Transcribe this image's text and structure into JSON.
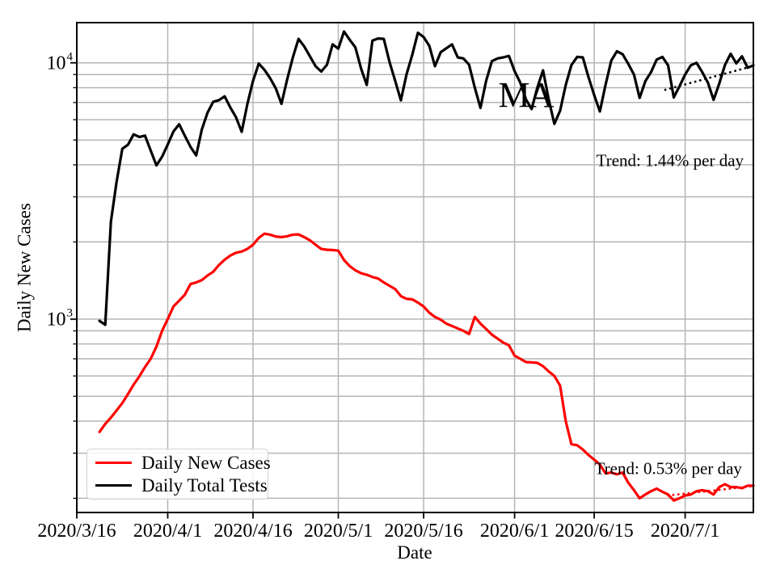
{
  "chart_data": {
    "type": "line",
    "title": "",
    "xlabel": "Date",
    "ylabel": "Daily New Cases",
    "y_scale": "log",
    "ylim": [
      176,
      14350
    ],
    "x_total_days": 119,
    "x_start_label": "2020/3/16",
    "grid": "on",
    "grid_color": "#b5b5b5",
    "x_ticks": [
      {
        "label": "2020/3/16",
        "day": 0
      },
      {
        "label": "2020/4/1",
        "day": 16
      },
      {
        "label": "2020/4/16",
        "day": 31
      },
      {
        "label": "2020/5/1",
        "day": 46
      },
      {
        "label": "2020/5/16",
        "day": 61
      },
      {
        "label": "2020/6/1",
        "day": 77
      },
      {
        "label": "2020/6/15",
        "day": 91
      },
      {
        "label": "2020/7/1",
        "day": 107
      }
    ],
    "y_ticks": [
      {
        "base": "10",
        "exp": "3",
        "value": 1000
      },
      {
        "base": "10",
        "exp": "4",
        "value": 10000
      }
    ],
    "y_gridlines_major": [
      1000,
      10000
    ],
    "y_gridlines_minor": [
      200,
      300,
      400,
      500,
      600,
      700,
      800,
      900,
      2000,
      3000,
      4000,
      5000,
      6000,
      7000,
      8000,
      9000
    ],
    "series": [
      {
        "name": "Daily New Cases",
        "color": "#ff0000",
        "start_day": 4,
        "values": [
          363,
          390,
          413,
          440,
          470,
          510,
          555,
          598,
          650,
          700,
          781,
          900,
          1000,
          1121,
          1180,
          1245,
          1370,
          1390,
          1420,
          1480,
          1530,
          1625,
          1705,
          1770,
          1815,
          1835,
          1880,
          1950,
          2075,
          2155,
          2135,
          2100,
          2090,
          2105,
          2135,
          2140,
          2090,
          2030,
          1950,
          1880,
          1865,
          1860,
          1850,
          1700,
          1610,
          1550,
          1510,
          1490,
          1460,
          1440,
          1390,
          1350,
          1310,
          1230,
          1200,
          1195,
          1160,
          1120,
          1060,
          1020,
          995,
          960,
          940,
          920,
          900,
          875,
          1020,
          960,
          915,
          870,
          840,
          810,
          790,
          720,
          700,
          680,
          678,
          675,
          655,
          625,
          600,
          550,
          400,
          325,
          322,
          310,
          295,
          283,
          271,
          250,
          252,
          248,
          252,
          230,
          215,
          200,
          207,
          213,
          218,
          212,
          207,
          196,
          200,
          205,
          207,
          213,
          215,
          213,
          207,
          221,
          227,
          221,
          221,
          219,
          224,
          224
        ]
      },
      {
        "name": "Daily Total Tests",
        "color": "#000000",
        "start_day": 4,
        "values": [
          985,
          950,
          2400,
          3430,
          4620,
          4790,
          5260,
          5140,
          5200,
          4550,
          3980,
          4300,
          4800,
          5400,
          5760,
          5200,
          4700,
          4350,
          5500,
          6400,
          7050,
          7150,
          7400,
          6700,
          6140,
          5380,
          6900,
          8500,
          9930,
          9400,
          8720,
          7950,
          6920,
          8600,
          10500,
          12400,
          11600,
          10600,
          9700,
          9250,
          9830,
          11800,
          11360,
          13250,
          12300,
          11500,
          9500,
          8200,
          12200,
          12450,
          12400,
          10100,
          8500,
          7140,
          9000,
          10750,
          13100,
          12600,
          11650,
          9700,
          11000,
          11400,
          11800,
          10500,
          10400,
          9830,
          8000,
          6670,
          8500,
          10150,
          10400,
          10500,
          10640,
          9280,
          8380,
          7200,
          6600,
          8000,
          9350,
          7200,
          5780,
          6500,
          8200,
          9800,
          10550,
          10500,
          8800,
          7480,
          6460,
          8200,
          10200,
          11100,
          10800,
          9900,
          9000,
          7300,
          8480,
          9200,
          10300,
          10550,
          9780,
          7330,
          8100,
          9000,
          9780,
          10000,
          9200,
          8380,
          7170,
          8300,
          9800,
          10850,
          9950,
          10600,
          9570,
          9780
        ]
      }
    ],
    "trend_lines": [
      {
        "series": "Daily Total Tests",
        "label": "Trend: 1.44% per day",
        "color": "#000000",
        "start_day": 103.5,
        "start_value": 7850,
        "end_day": 119,
        "end_value": 9720,
        "label_day": 117.3,
        "label_value": 4150
      },
      {
        "series": "Daily New Cases",
        "label": "Trend: 0.53% per day",
        "color": "#ff0000",
        "start_day": 104,
        "start_value": 205,
        "end_day": 119,
        "end_value": 223,
        "label_day": 117,
        "label_value": 260
      }
    ],
    "annotations": [
      {
        "text": "MA",
        "day": 78.9,
        "value": 7460
      }
    ],
    "legend": {
      "position": "lower left",
      "entries": [
        {
          "label": "Daily New Cases",
          "color": "#ff0000"
        },
        {
          "label": "Daily Total Tests",
          "color": "#000000"
        }
      ]
    }
  }
}
